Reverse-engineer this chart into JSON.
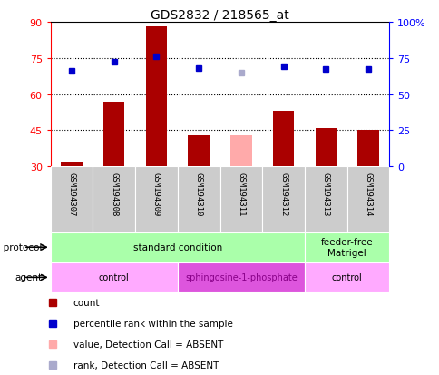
{
  "title": "GDS2832 / 218565_at",
  "samples": [
    "GSM194307",
    "GSM194308",
    "GSM194309",
    "GSM194310",
    "GSM194311",
    "GSM194312",
    "GSM194313",
    "GSM194314"
  ],
  "counts": [
    32,
    57,
    88,
    43,
    null,
    53,
    46,
    45
  ],
  "counts_absent": [
    null,
    null,
    null,
    null,
    43,
    null,
    null,
    null
  ],
  "ranks": [
    66,
    72,
    76,
    68,
    null,
    69,
    67,
    67
  ],
  "ranks_absent": [
    null,
    null,
    null,
    null,
    65,
    null,
    null,
    null
  ],
  "left_ylim": [
    30,
    90
  ],
  "left_yticks": [
    30,
    45,
    60,
    75,
    90
  ],
  "right_ylim": [
    0,
    100
  ],
  "right_yticks": [
    0,
    25,
    50,
    75,
    100
  ],
  "right_yticklabels": [
    "0",
    "25",
    "50",
    "75",
    "100%"
  ],
  "bar_color": "#aa0000",
  "bar_absent_color": "#ffaaaa",
  "rank_color": "#0000cc",
  "rank_absent_color": "#aaaacc",
  "growth_protocol_color": "#aaffaa",
  "agent_control_color": "#ffaaff",
  "agent_sph_color": "#dd55dd",
  "growth_protocol_labels": [
    {
      "text": "standard condition",
      "start": 0,
      "end": 6
    },
    {
      "text": "feeder-free\nMatrigel",
      "start": 6,
      "end": 8
    }
  ],
  "agent_labels": [
    {
      "text": "control",
      "start": 0,
      "end": 3,
      "color": "black"
    },
    {
      "text": "sphingosine-1-phosphate",
      "start": 3,
      "end": 6,
      "color": "#880088"
    },
    {
      "text": "control",
      "start": 6,
      "end": 8,
      "color": "black"
    }
  ],
  "legend_items": [
    {
      "label": "count",
      "color": "#aa0000"
    },
    {
      "label": "percentile rank within the sample",
      "color": "#0000cc"
    },
    {
      "label": "value, Detection Call = ABSENT",
      "color": "#ffaaaa"
    },
    {
      "label": "rank, Detection Call = ABSENT",
      "color": "#aaaacc"
    }
  ],
  "bar_width": 0.5
}
